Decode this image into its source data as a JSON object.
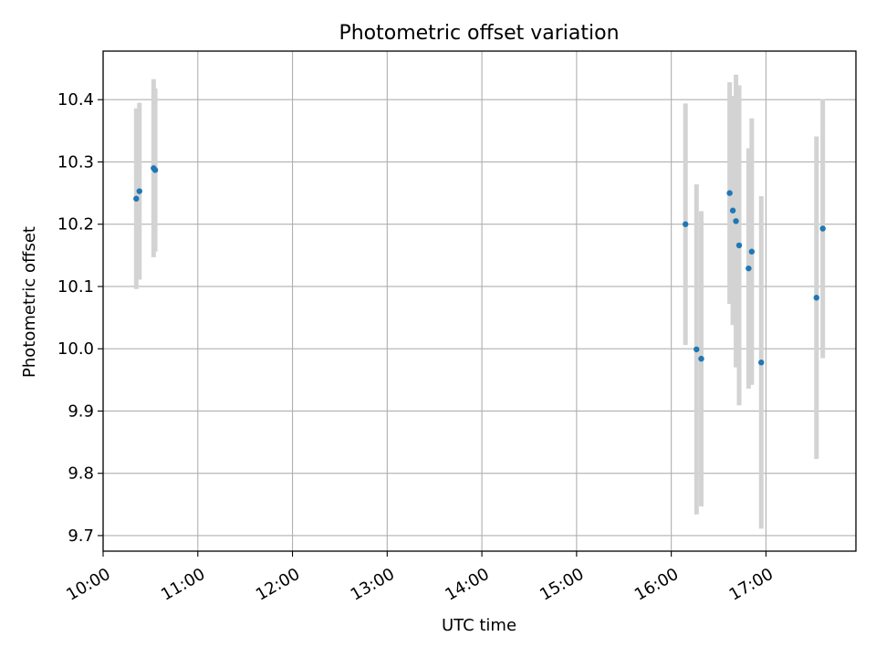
{
  "chart_data": {
    "type": "scatter",
    "title": "Photometric offset variation",
    "xlabel": "UTC time",
    "ylabel": "Photometric offset",
    "x_ticks": [
      "10:00",
      "11:00",
      "12:00",
      "13:00",
      "14:00",
      "15:00",
      "16:00",
      "17:00"
    ],
    "y_ticks": [
      "9.7",
      "9.8",
      "9.9",
      "10.0",
      "10.1",
      "10.2",
      "10.3",
      "10.4"
    ],
    "xlim": [
      "10:00",
      "17:57"
    ],
    "ylim": [
      9.675,
      10.478
    ],
    "grid": true,
    "colors": {
      "point": "#1f77b4",
      "errorbar": "#d3d3d3",
      "grid": "#b0b0b0"
    },
    "series": [
      {
        "points": [
          {
            "time": "10:21",
            "y": 10.241,
            "yerr": 0.145
          },
          {
            "time": "10:23",
            "y": 10.253,
            "yerr": 0.142
          },
          {
            "time": "10:32",
            "y": 10.29,
            "yerr": 0.143
          },
          {
            "time": "10:33",
            "y": 10.287,
            "yerr": 0.131
          },
          {
            "time": "16:09",
            "y": 10.2,
            "yerr": 0.194
          },
          {
            "time": "16:16",
            "y": 9.999,
            "yerr": 0.265
          },
          {
            "time": "16:19",
            "y": 9.984,
            "yerr": 0.237
          },
          {
            "time": "16:37",
            "y": 10.25,
            "yerr": 0.178
          },
          {
            "time": "16:39",
            "y": 10.222,
            "yerr": 0.184
          },
          {
            "time": "16:41",
            "y": 10.205,
            "yerr": 0.235
          },
          {
            "time": "16:43",
            "y": 10.166,
            "yerr": 0.257
          },
          {
            "time": "16:49",
            "y": 10.129,
            "yerr": 0.193
          },
          {
            "time": "16:51",
            "y": 10.156,
            "yerr": 0.214
          },
          {
            "time": "16:57",
            "y": 9.978,
            "yerr": 0.267
          },
          {
            "time": "17:32",
            "y": 10.082,
            "yerr": 0.259
          },
          {
            "time": "17:36",
            "y": 10.193,
            "yerr": 0.208
          }
        ]
      }
    ]
  }
}
